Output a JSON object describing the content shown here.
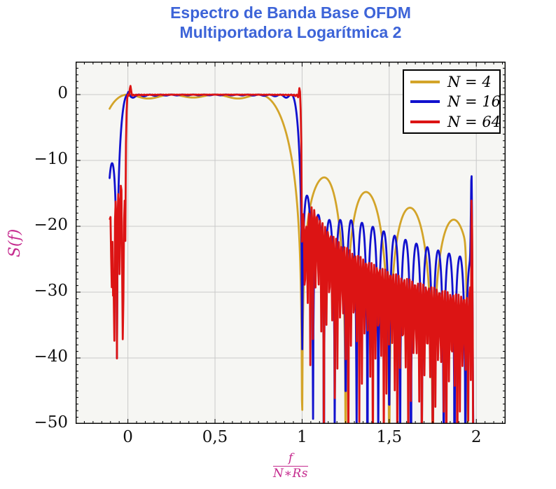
{
  "title": {
    "line1": "Espectro de Banda Base OFDM",
    "line2": "Multiportadora Logarítmica 2",
    "color": "#3d64d8"
  },
  "axes": {
    "x": {
      "label_numerator": "f",
      "label_denominator": "N∗Rs",
      "label_color": "#c52a8e",
      "min": -0.3,
      "max": 2.168,
      "minor_step": 0.05,
      "ticks": [
        {
          "v": 0,
          "label": "0"
        },
        {
          "v": 0.5,
          "label": "0,5"
        },
        {
          "v": 1,
          "label": "1"
        },
        {
          "v": 1.5,
          "label": "1,5"
        },
        {
          "v": 2,
          "label": "2"
        }
      ]
    },
    "y": {
      "label": "S(f)",
      "label_color": "#c52a8e",
      "min": -50,
      "max": 5,
      "minor_step": 1,
      "ticks": [
        {
          "v": 0,
          "label": "0"
        },
        {
          "v": -10,
          "label": "−10"
        },
        {
          "v": -20,
          "label": "−20"
        },
        {
          "v": -30,
          "label": "−30"
        },
        {
          "v": -40,
          "label": "−40"
        },
        {
          "v": -50,
          "label": "−50"
        }
      ]
    }
  },
  "legend": {
    "items": [
      {
        "label": "N = 4",
        "color": "#d3a429"
      },
      {
        "label": "N = 16",
        "color": "#1111ce"
      },
      {
        "label": "N = 64",
        "color": "#dc1414"
      }
    ]
  },
  "chart_data": {
    "type": "line",
    "title": "Espectro de Banda Base OFDM Multiportadora Logarítmica 2",
    "xlabel": "f/(N*Rs)",
    "ylabel": "S(f) [dB]",
    "xlim": [
      -0.3,
      2.168
    ],
    "ylim": [
      -50,
      5
    ],
    "grid": true,
    "legend_position": "top-right",
    "model": "ofdm_power_spectrum",
    "formula": "S_dB(x) = 10*log10( sum_{k=0..N-1} sinc^2(N*x - k) ) + sum_j amp_j*exp(-((x-c_j)/w_j)^2)",
    "style": {
      "plot_bg": "#f6f6f3",
      "grid_color": "#c9c9c9",
      "frame_color": "#000000",
      "line_width": 2.8
    },
    "series": [
      {
        "name": "N = 4",
        "N": 4,
        "color": "#d3a429",
        "x_start": -0.105,
        "x_end": 1.958,
        "step": 0.002,
        "features": [
          {
            "c": 1.06,
            "amp": -2.2,
            "w": 0.09,
            "xmin": 1.0
          },
          {
            "c": 1.956,
            "amp": -32,
            "w": 0.01,
            "xmin": 1.88
          }
        ],
        "landmarks_x_db": [
          [
            -0.105,
            -2.1
          ],
          [
            0,
            0
          ],
          [
            0.5,
            -0.2
          ],
          [
            0.82,
            -0.5
          ],
          [
            1.0,
            -50
          ],
          [
            1.125,
            -13
          ],
          [
            1.375,
            -16.5
          ],
          [
            1.625,
            -18.5
          ],
          [
            1.875,
            -19.3
          ],
          [
            1.95,
            -50
          ]
        ]
      },
      {
        "name": "N = 16",
        "N": 16,
        "color": "#1111ce",
        "x_start": -0.105,
        "x_end": 1.9905,
        "step": 0.002,
        "features": [
          {
            "c": 0.004,
            "amp": 0.45,
            "w": 0.005
          },
          {
            "c": 1.05,
            "amp": -5,
            "w": 0.18,
            "xmin": 1.0
          },
          {
            "c": 1.973,
            "amp": 16.5,
            "w": 0.005,
            "xmin": 1.9
          },
          {
            "c": 1.992,
            "amp": -45,
            "w": 0.012,
            "xmin": 1.95
          }
        ],
        "landmarks_x_db": [
          [
            -0.105,
            -11.5
          ],
          [
            -0.066,
            -20
          ],
          [
            0,
            0
          ],
          [
            1.0,
            -50
          ],
          [
            1.03,
            -14.5
          ],
          [
            1.1,
            -16
          ],
          [
            1.3,
            -18.3
          ],
          [
            1.5,
            -20.5
          ],
          [
            1.7,
            -22
          ],
          [
            1.9,
            -23.5
          ],
          [
            1.973,
            -7.6
          ],
          [
            1.985,
            -50
          ]
        ]
      },
      {
        "name": "N = 64",
        "N": 64,
        "color": "#dc1414",
        "x_start": -0.1035,
        "x_end": 1.9907,
        "step": 0.0037,
        "features": [
          {
            "c": -0.084,
            "amp": -14,
            "w": 0.004,
            "xmax": 0
          },
          {
            "c": -0.027,
            "amp": -20,
            "w": 0.0055,
            "xmax": 0
          },
          {
            "c": 0.014,
            "amp": 1.35,
            "w": 0.006
          },
          {
            "c": 0.986,
            "amp": 1.1,
            "w": 0.005
          },
          {
            "c": 1.01,
            "amp": -8,
            "w": 0.03,
            "xmin": 1.0
          },
          {
            "c": 1.972,
            "amp": 19,
            "w": 0.006,
            "xmin": 1.9
          },
          {
            "c": 1.99,
            "amp": -45,
            "w": 0.008,
            "xmin": 1.96
          }
        ],
        "landmarks_x_db": [
          [
            -0.105,
            -18.8
          ],
          [
            -0.084,
            -34
          ],
          [
            -0.054,
            -13.7
          ],
          [
            -0.027,
            -31
          ],
          [
            0.02,
            1.2
          ],
          [
            0.5,
            0
          ],
          [
            0.986,
            0.8
          ],
          [
            1.01,
            -15
          ],
          [
            1.1,
            -18
          ],
          [
            1.5,
            -26
          ],
          [
            1.9,
            -28
          ],
          [
            1.972,
            -15
          ],
          [
            1.982,
            -50
          ]
        ]
      }
    ]
  }
}
